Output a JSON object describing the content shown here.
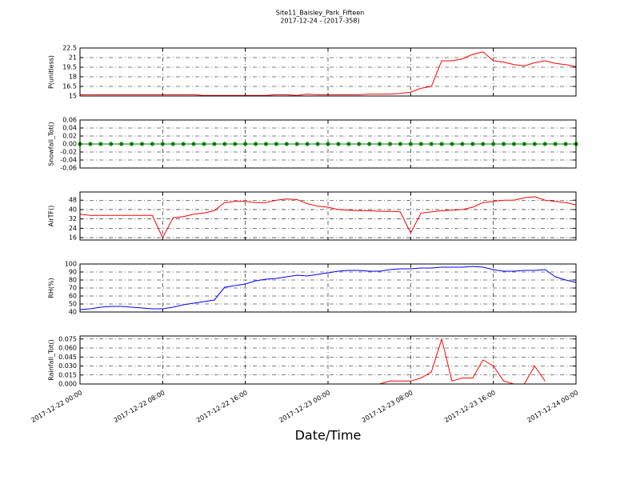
{
  "title": "Site11_Baisley_Park_Fifteen",
  "subtitle": "2017-12-24 - (2017-358)",
  "xlabel": "Date/Time",
  "chart_data": [
    {
      "type": "line",
      "ylabel": "P(unitless)",
      "color": "#ff0000",
      "grid": true,
      "xlim": [
        "2017-12-22 00:00",
        "2017-12-24 00:00"
      ],
      "xticks": [
        {
          "value": "2017-12-22 00:00",
          "label": "2017-12-22 00:00"
        },
        {
          "value": "2017-12-22 08:00",
          "label": "2017-12-22 08:00"
        },
        {
          "value": "2017-12-22 16:00",
          "label": "2017-12-22 16:00"
        },
        {
          "value": "2017-12-23 00:00",
          "label": "2017-12-23 00:00"
        },
        {
          "value": "2017-12-23 08:00",
          "label": "2017-12-23 08:00"
        },
        {
          "value": "2017-12-23 16:00",
          "label": "2017-12-23 16:00"
        },
        {
          "value": "2017-12-24 00:00",
          "label": "2017-12-24 00:00"
        }
      ],
      "x": [
        "2017-12-22 00:00",
        "2017-12-22 01:00",
        "2017-12-22 02:00",
        "2017-12-22 03:00",
        "2017-12-22 04:00",
        "2017-12-22 05:00",
        "2017-12-22 06:00",
        "2017-12-22 07:00",
        "2017-12-22 08:00",
        "2017-12-22 09:00",
        "2017-12-22 10:00",
        "2017-12-22 11:00",
        "2017-12-22 12:00",
        "2017-12-22 13:00",
        "2017-12-22 14:00",
        "2017-12-22 15:00",
        "2017-12-22 16:00",
        "2017-12-22 17:00",
        "2017-12-22 18:00",
        "2017-12-22 19:00",
        "2017-12-22 20:00",
        "2017-12-22 21:00",
        "2017-12-22 22:00",
        "2017-12-22 23:00",
        "2017-12-23 00:00",
        "2017-12-23 01:00",
        "2017-12-23 02:00",
        "2017-12-23 03:00",
        "2017-12-23 04:00",
        "2017-12-23 05:00",
        "2017-12-23 06:00",
        "2017-12-23 07:00",
        "2017-12-23 08:00",
        "2017-12-23 09:00",
        "2017-12-23 10:00",
        "2017-12-23 11:00",
        "2017-12-23 12:00",
        "2017-12-23 13:00",
        "2017-12-23 14:00",
        "2017-12-23 15:00",
        "2017-12-23 16:00",
        "2017-12-23 17:00",
        "2017-12-23 18:00",
        "2017-12-23 19:00",
        "2017-12-23 20:00",
        "2017-12-23 21:00",
        "2017-12-23 22:00",
        "2017-12-23 23:00",
        "2017-12-24 00:00"
      ],
      "values": [
        15.2,
        15.2,
        15.2,
        15.2,
        15.2,
        15.2,
        15.2,
        15.2,
        15.2,
        15.2,
        15.2,
        15.2,
        15.1,
        15.1,
        15.1,
        15.1,
        15.1,
        15.1,
        15.1,
        15.2,
        15.2,
        15.1,
        15.3,
        15.2,
        15.2,
        15.2,
        15.2,
        15.2,
        15.3,
        15.3,
        15.3,
        15.4,
        15.6,
        16.2,
        16.5,
        20.5,
        20.5,
        20.8,
        21.5,
        21.9,
        20.5,
        20.3,
        19.9,
        19.7,
        20.2,
        20.5,
        20.1,
        19.9,
        19.6
      ],
      "ylim": [
        15,
        22.5
      ],
      "yticks": [
        15,
        16.5,
        18,
        19.5,
        21,
        22.5
      ]
    },
    {
      "type": "line",
      "ylabel": "Snowfall_Tot()",
      "color": "#008000",
      "markers": true,
      "grid": true,
      "xlim": [
        "2017-12-22 00:00",
        "2017-12-24 00:00"
      ],
      "xticks": [
        {
          "value": "2017-12-22 00:00",
          "label": "2017-12-22 00:00"
        },
        {
          "value": "2017-12-22 08:00",
          "label": "2017-12-22 08:00"
        },
        {
          "value": "2017-12-22 16:00",
          "label": "2017-12-22 16:00"
        },
        {
          "value": "2017-12-23 00:00",
          "label": "2017-12-23 00:00"
        },
        {
          "value": "2017-12-23 08:00",
          "label": "2017-12-23 08:00"
        },
        {
          "value": "2017-12-23 16:00",
          "label": "2017-12-23 16:00"
        },
        {
          "value": "2017-12-24 00:00",
          "label": "2017-12-24 00:00"
        }
      ],
      "x": [
        "2017-12-22 00:00",
        "2017-12-22 01:00",
        "2017-12-22 02:00",
        "2017-12-22 03:00",
        "2017-12-22 04:00",
        "2017-12-22 05:00",
        "2017-12-22 06:00",
        "2017-12-22 07:00",
        "2017-12-22 08:00",
        "2017-12-22 09:00",
        "2017-12-22 10:00",
        "2017-12-22 11:00",
        "2017-12-22 12:00",
        "2017-12-22 13:00",
        "2017-12-22 14:00",
        "2017-12-22 15:00",
        "2017-12-22 16:00",
        "2017-12-22 17:00",
        "2017-12-22 18:00",
        "2017-12-22 19:00",
        "2017-12-22 20:00",
        "2017-12-22 21:00",
        "2017-12-22 22:00",
        "2017-12-22 23:00",
        "2017-12-23 00:00",
        "2017-12-23 01:00",
        "2017-12-23 02:00",
        "2017-12-23 03:00",
        "2017-12-23 04:00",
        "2017-12-23 05:00",
        "2017-12-23 06:00",
        "2017-12-23 07:00",
        "2017-12-23 08:00",
        "2017-12-23 09:00",
        "2017-12-23 10:00",
        "2017-12-23 11:00",
        "2017-12-23 12:00",
        "2017-12-23 13:00",
        "2017-12-23 14:00",
        "2017-12-23 15:00",
        "2017-12-23 16:00",
        "2017-12-23 17:00",
        "2017-12-23 18:00",
        "2017-12-23 19:00",
        "2017-12-23 20:00",
        "2017-12-23 21:00",
        "2017-12-23 22:00",
        "2017-12-23 23:00",
        "2017-12-24 00:00"
      ],
      "values": [
        0,
        0,
        0,
        0,
        0,
        0,
        0,
        0,
        0,
        0,
        0,
        0,
        0,
        0,
        0,
        0,
        0,
        0,
        0,
        0,
        0,
        0,
        0,
        0,
        0,
        0,
        0,
        0,
        0,
        0,
        0,
        0,
        0,
        0,
        0,
        0,
        0,
        0,
        0,
        0,
        0,
        0,
        0,
        0,
        0,
        0,
        0,
        0,
        0
      ],
      "ylim": [
        -0.06,
        0.06
      ],
      "yticks": [
        -0.06,
        -0.04,
        -0.02,
        {
          "value": 0,
          "label": "0.00"
        },
        0.02,
        0.04,
        0.06
      ]
    },
    {
      "type": "line",
      "ylabel": "AirTF()",
      "color": "#ff0000",
      "grid": true,
      "xlim": [
        "2017-12-22 00:00",
        "2017-12-24 00:00"
      ],
      "xticks": [
        {
          "value": "2017-12-22 00:00",
          "label": "2017-12-22 00:00"
        },
        {
          "value": "2017-12-22 08:00",
          "label": "2017-12-22 08:00"
        },
        {
          "value": "2017-12-22 16:00",
          "label": "2017-12-22 16:00"
        },
        {
          "value": "2017-12-23 00:00",
          "label": "2017-12-23 00:00"
        },
        {
          "value": "2017-12-23 08:00",
          "label": "2017-12-23 08:00"
        },
        {
          "value": "2017-12-23 16:00",
          "label": "2017-12-23 16:00"
        },
        {
          "value": "2017-12-24 00:00",
          "label": "2017-12-24 00:00"
        }
      ],
      "x": [
        "2017-12-22 00:00",
        "2017-12-22 01:00",
        "2017-12-22 02:00",
        "2017-12-22 03:00",
        "2017-12-22 04:00",
        "2017-12-22 05:00",
        "2017-12-22 06:00",
        "2017-12-22 07:00",
        "2017-12-22 08:00",
        "2017-12-22 09:00",
        "2017-12-22 10:00",
        "2017-12-22 11:00",
        "2017-12-22 12:00",
        "2017-12-22 13:00",
        "2017-12-22 14:00",
        "2017-12-22 15:00",
        "2017-12-22 16:00",
        "2017-12-22 17:00",
        "2017-12-22 18:00",
        "2017-12-22 19:00",
        "2017-12-22 20:00",
        "2017-12-22 21:00",
        "2017-12-22 22:00",
        "2017-12-22 23:00",
        "2017-12-23 00:00",
        "2017-12-23 01:00",
        "2017-12-23 02:00",
        "2017-12-23 03:00",
        "2017-12-23 04:00",
        "2017-12-23 05:00",
        "2017-12-23 06:00",
        "2017-12-23 07:00",
        "2017-12-23 08:00",
        "2017-12-23 09:00",
        "2017-12-23 10:00",
        "2017-12-23 11:00",
        "2017-12-23 12:00",
        "2017-12-23 13:00",
        "2017-12-23 14:00",
        "2017-12-23 15:00",
        "2017-12-23 16:00",
        "2017-12-23 17:00",
        "2017-12-23 18:00",
        "2017-12-23 19:00",
        "2017-12-23 20:00",
        "2017-12-23 21:00",
        "2017-12-23 22:00",
        "2017-12-23 23:00",
        "2017-12-24 00:00"
      ],
      "values": [
        36,
        35,
        35,
        35,
        35,
        35,
        35,
        35,
        16,
        33,
        34,
        36,
        37,
        39,
        46,
        47,
        47,
        46,
        46,
        48,
        49,
        48.5,
        45,
        43,
        42,
        40,
        39.5,
        39,
        39,
        38.5,
        38.5,
        38,
        20,
        37,
        38,
        39,
        39.5,
        40,
        42,
        46,
        47,
        48,
        48,
        50,
        51,
        48,
        47,
        46,
        44
      ],
      "ylim": [
        14,
        55
      ],
      "yticks": [
        16,
        24,
        32,
        40,
        48
      ]
    },
    {
      "type": "line",
      "ylabel": "RH(%)",
      "color": "#0000ff",
      "grid": true,
      "xlim": [
        "2017-12-22 00:00",
        "2017-12-24 00:00"
      ],
      "xticks": [
        {
          "value": "2017-12-22 00:00",
          "label": "2017-12-22 00:00"
        },
        {
          "value": "2017-12-22 08:00",
          "label": "2017-12-22 08:00"
        },
        {
          "value": "2017-12-22 16:00",
          "label": "2017-12-22 16:00"
        },
        {
          "value": "2017-12-23 00:00",
          "label": "2017-12-23 00:00"
        },
        {
          "value": "2017-12-23 08:00",
          "label": "2017-12-23 08:00"
        },
        {
          "value": "2017-12-23 16:00",
          "label": "2017-12-23 16:00"
        },
        {
          "value": "2017-12-24 00:00",
          "label": "2017-12-24 00:00"
        }
      ],
      "x": [
        "2017-12-22 00:00",
        "2017-12-22 01:00",
        "2017-12-22 02:00",
        "2017-12-22 03:00",
        "2017-12-22 04:00",
        "2017-12-22 05:00",
        "2017-12-22 06:00",
        "2017-12-22 07:00",
        "2017-12-22 08:00",
        "2017-12-22 09:00",
        "2017-12-22 10:00",
        "2017-12-22 11:00",
        "2017-12-22 12:00",
        "2017-12-22 13:00",
        "2017-12-22 14:00",
        "2017-12-22 15:00",
        "2017-12-22 16:00",
        "2017-12-22 17:00",
        "2017-12-22 18:00",
        "2017-12-22 19:00",
        "2017-12-22 20:00",
        "2017-12-22 21:00",
        "2017-12-22 22:00",
        "2017-12-22 23:00",
        "2017-12-23 00:00",
        "2017-12-23 01:00",
        "2017-12-23 02:00",
        "2017-12-23 03:00",
        "2017-12-23 04:00",
        "2017-12-23 05:00",
        "2017-12-23 06:00",
        "2017-12-23 07:00",
        "2017-12-23 08:00",
        "2017-12-23 09:00",
        "2017-12-23 10:00",
        "2017-12-23 11:00",
        "2017-12-23 12:00",
        "2017-12-23 13:00",
        "2017-12-23 14:00",
        "2017-12-23 15:00",
        "2017-12-23 16:00",
        "2017-12-23 17:00",
        "2017-12-23 18:00",
        "2017-12-23 19:00",
        "2017-12-23 20:00",
        "2017-12-23 21:00",
        "2017-12-23 22:00",
        "2017-12-23 23:00",
        "2017-12-24 00:00"
      ],
      "values": [
        43,
        44,
        46,
        47,
        47,
        46,
        45,
        44,
        44,
        46,
        49,
        51,
        53,
        55,
        71,
        73,
        75,
        79,
        81,
        82,
        84,
        86,
        85,
        87,
        89,
        91,
        92,
        92,
        91,
        91,
        93,
        94,
        94,
        95,
        95,
        96,
        96,
        96,
        97,
        96,
        93,
        91,
        91,
        92,
        92,
        93,
        84,
        80,
        77
      ],
      "ylim": [
        40,
        100
      ],
      "yticks": [
        40,
        50,
        60,
        70,
        80,
        90,
        100
      ]
    },
    {
      "type": "line",
      "ylabel": "Rainfall_Tot()",
      "color": "#ff0000",
      "grid": true,
      "xlim": [
        "2017-12-22 00:00",
        "2017-12-24 00:00"
      ],
      "xticks": [
        {
          "value": "2017-12-22 00:00",
          "label": "2017-12-22 00:00"
        },
        {
          "value": "2017-12-22 08:00",
          "label": "2017-12-22 08:00"
        },
        {
          "value": "2017-12-22 16:00",
          "label": "2017-12-22 16:00"
        },
        {
          "value": "2017-12-23 00:00",
          "label": "2017-12-23 00:00"
        },
        {
          "value": "2017-12-23 08:00",
          "label": "2017-12-23 08:00"
        },
        {
          "value": "2017-12-23 16:00",
          "label": "2017-12-23 16:00"
        },
        {
          "value": "2017-12-24 00:00",
          "label": "2017-12-24 00:00"
        }
      ],
      "x": [
        "2017-12-22 00:00",
        "2017-12-22 01:00",
        "2017-12-22 02:00",
        "2017-12-22 03:00",
        "2017-12-22 04:00",
        "2017-12-22 05:00",
        "2017-12-22 06:00",
        "2017-12-22 07:00",
        "2017-12-22 08:00",
        "2017-12-22 09:00",
        "2017-12-22 10:00",
        "2017-12-22 11:00",
        "2017-12-22 12:00",
        "2017-12-22 13:00",
        "2017-12-22 14:00",
        "2017-12-22 15:00",
        "2017-12-22 16:00",
        "2017-12-22 17:00",
        "2017-12-22 18:00",
        "2017-12-22 19:00",
        "2017-12-22 20:00",
        "2017-12-22 21:00",
        "2017-12-22 22:00",
        "2017-12-22 23:00",
        "2017-12-23 00:00",
        "2017-12-23 01:00",
        "2017-12-23 02:00",
        "2017-12-23 03:00",
        "2017-12-23 04:00",
        "2017-12-23 05:00",
        "2017-12-23 06:00",
        "2017-12-23 07:00",
        "2017-12-23 08:00",
        "2017-12-23 09:00",
        "2017-12-23 10:00",
        "2017-12-23 11:00",
        "2017-12-23 12:00",
        "2017-12-23 13:00",
        "2017-12-23 14:00",
        "2017-12-23 15:00",
        "2017-12-23 16:00",
        "2017-12-23 17:00",
        "2017-12-23 18:00",
        "2017-12-23 19:00",
        "2017-12-23 20:00",
        "2017-12-23 21:00",
        "2017-12-23 22:00",
        "2017-12-23 23:00",
        "2017-12-24 00:00"
      ],
      "values": [
        0,
        0,
        0,
        0,
        0,
        0,
        0,
        0,
        0,
        0,
        0,
        0,
        0,
        0,
        0,
        0,
        0,
        0,
        0,
        0,
        0,
        0,
        0,
        0,
        0,
        0,
        0,
        0,
        0,
        0,
        0.005,
        0.005,
        0.005,
        0.01,
        0.02,
        0.075,
        0.005,
        0.01,
        0.01,
        0.04,
        0.03,
        0.005,
        0,
        0,
        0.03,
        0.005,
        null,
        null,
        null
      ],
      "ylim": [
        0,
        0.08
      ],
      "yticks": [
        {
          "value": 0,
          "label": "0.000"
        },
        0.015,
        {
          "value": 0.03,
          "label": "0.030"
        },
        0.045,
        {
          "value": 0.06,
          "label": "0.060"
        },
        0.075
      ]
    }
  ]
}
